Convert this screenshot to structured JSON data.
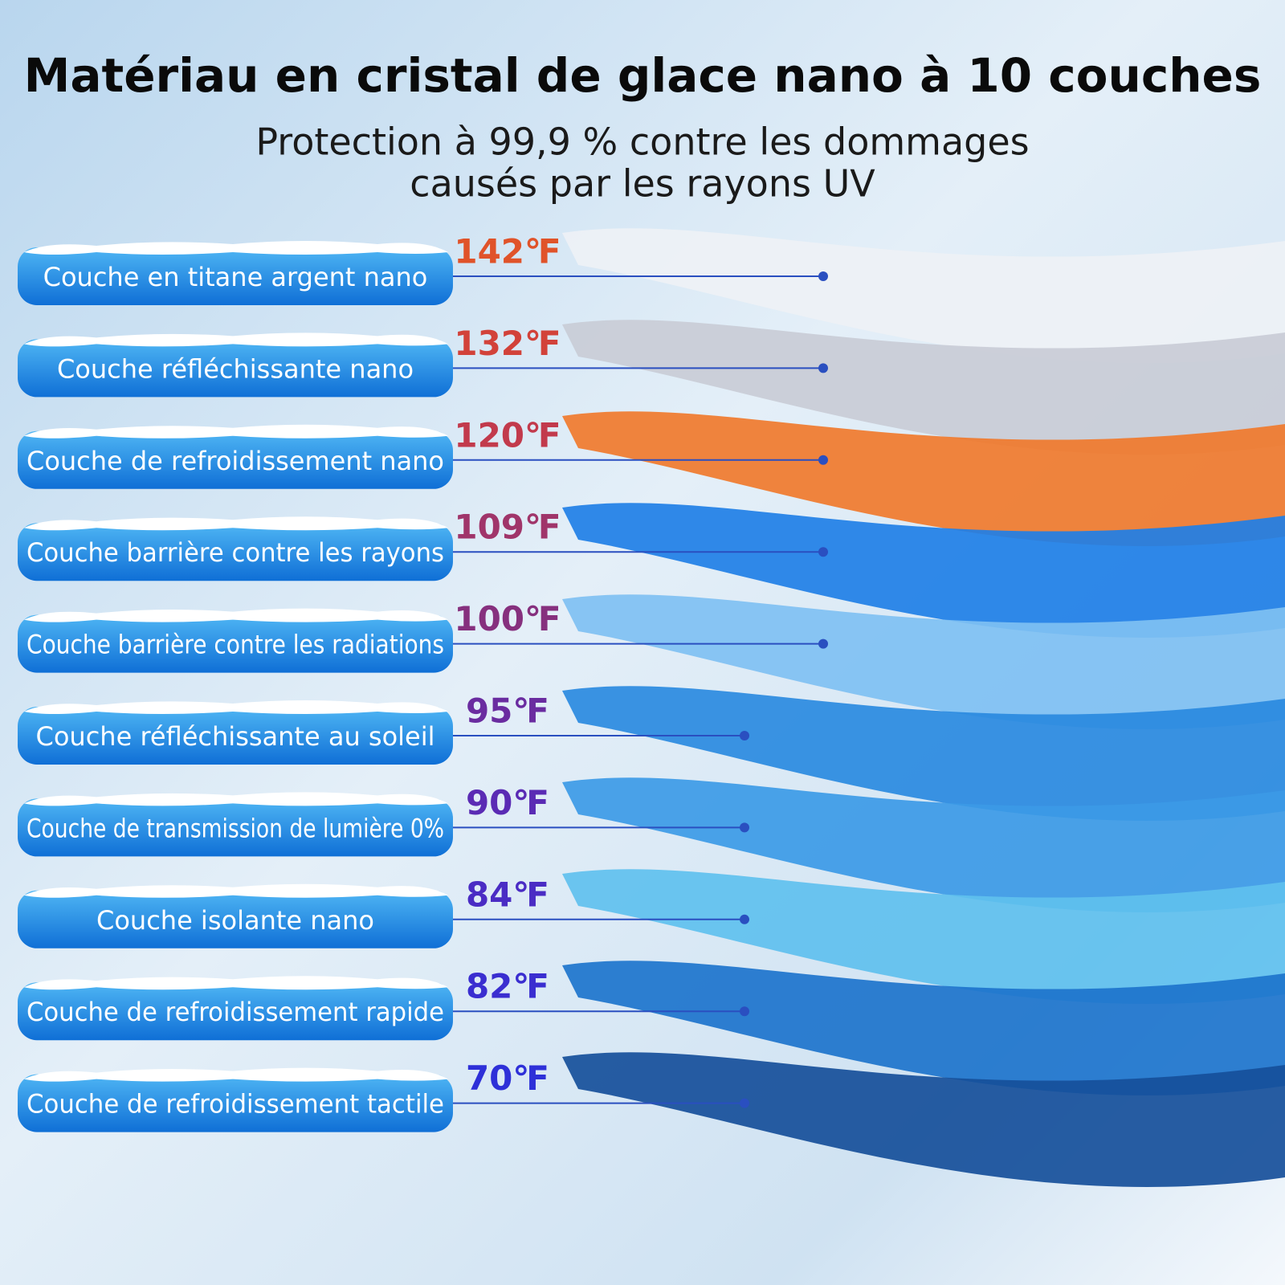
{
  "title": "Matériau en cristal de glace nano à 10 couches",
  "subtitle": [
    "Protection à 99,9 % contre les dommages",
    "causés par les rayons UV"
  ],
  "layers": [
    {
      "label": "Couche en titane argent nano",
      "temperature": "142℉",
      "color": "#e0532a"
    },
    {
      "label": "Couche réfléchissante nano",
      "temperature": "132℉",
      "color": "#d2423a"
    },
    {
      "label": "Couche de refroidissement nano",
      "temperature": "120℉",
      "color": "#c23a4c"
    },
    {
      "label": "Couche barrière contre les rayons",
      "temperature": "109℉",
      "color": "#a0356a"
    },
    {
      "label": "Couche barrière contre les radiations",
      "temperature": "100℉",
      "color": "#86307e"
    },
    {
      "label": "Couche réfléchissante au soleil",
      "temperature": "95℉",
      "color": "#6a2ca0"
    },
    {
      "label": "Couche de transmission de lumière 0%",
      "temperature": "90℉",
      "color": "#5a2bb4"
    },
    {
      "label": "Couche isolante nano",
      "temperature": "84℉",
      "color": "#4a2cc4"
    },
    {
      "label": "Couche de refroidissement rapide",
      "temperature": "82℉",
      "color": "#3a2ed0"
    },
    {
      "label": "Couche de refroidissement tactile",
      "temperature": "70℉",
      "color": "#2e30d8"
    }
  ]
}
